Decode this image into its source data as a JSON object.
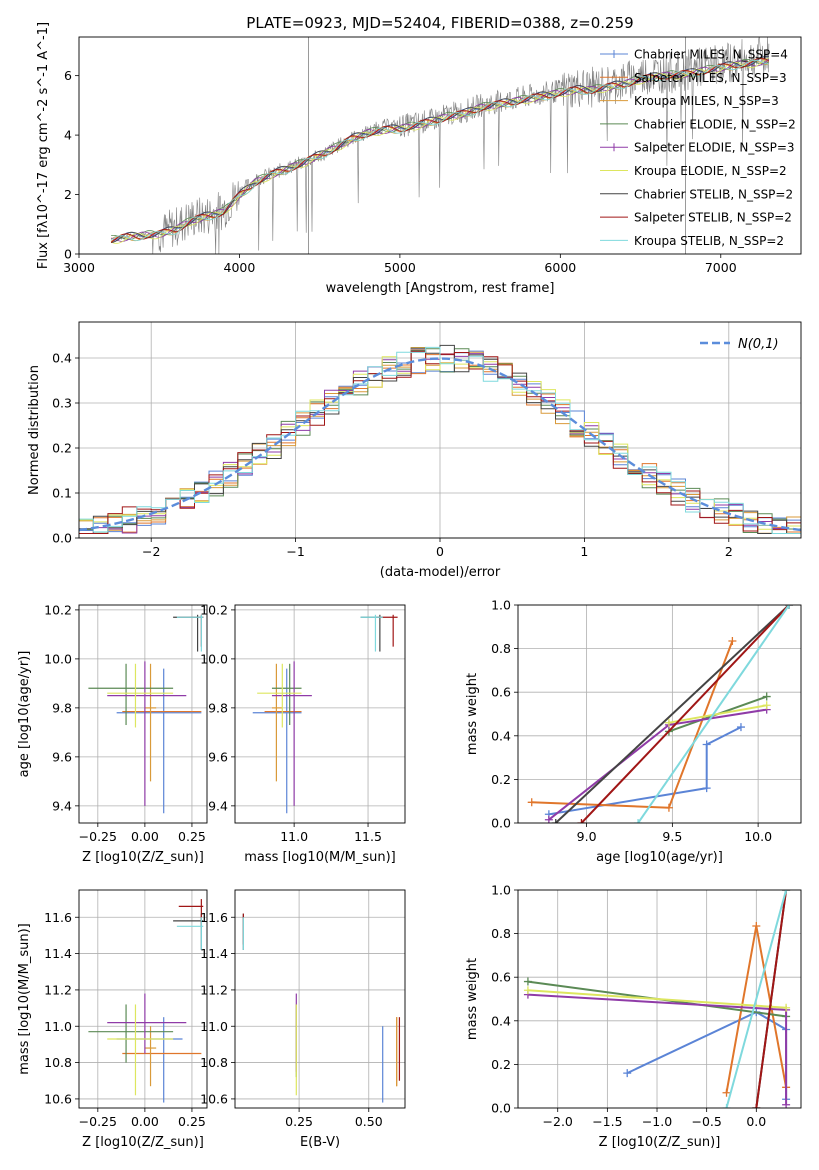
{
  "figure": {
    "title": "PLATE=0923, MJD=52404, FIBERID=0388, z=0.259"
  },
  "models": [
    {
      "name": "Chabrier MILES, N_SSP=4",
      "color": "#5b84d6"
    },
    {
      "name": "Salpeter MILES, N_SSP=3",
      "color": "#e0762b"
    },
    {
      "name": "Kroupa MILES, N_SSP=3",
      "color": "#d99a3a"
    },
    {
      "name": "Chabrier ELODIE, N_SSP=2",
      "color": "#5b8a55"
    },
    {
      "name": "Salpeter ELODIE, N_SSP=3",
      "color": "#8f3ba7"
    },
    {
      "name": "Kroupa ELODIE, N_SSP=2",
      "color": "#dde65f"
    },
    {
      "name": "Chabrier STELIB, N_SSP=2",
      "color": "#444444"
    },
    {
      "name": "Salpeter STELIB, N_SSP=2",
      "color": "#a01616"
    },
    {
      "name": "Kroupa STELIB, N_SSP=2",
      "color": "#7fd9dd"
    }
  ],
  "chart_data": [
    {
      "id": "spectrum",
      "type": "line",
      "xlabel": "wavelength [Angstrom, rest frame]",
      "ylabel": "Flux [fλ10^-17 erg cm^-2 s^-1 A^-1]",
      "xlim": [
        3000,
        7500
      ],
      "ylim": [
        0,
        7.3
      ],
      "xticks": [
        3000,
        4000,
        5000,
        6000,
        7000
      ],
      "yticks": [
        0,
        2,
        4,
        6
      ],
      "grid": false,
      "legend": "top-right",
      "data_color": "#808080",
      "data_x": [
        3200,
        3300,
        3400,
        3500,
        3600,
        3700,
        3800,
        3900,
        4000,
        4100,
        4200,
        4300,
        4400,
        4500,
        4600,
        4700,
        4800,
        4900,
        5000,
        5100,
        5200,
        5300,
        5400,
        5500,
        5600,
        5700,
        5800,
        5900,
        6000,
        6100,
        6200,
        6300,
        6400,
        6500,
        6600,
        6700,
        6800,
        6900,
        7000,
        7100,
        7200,
        7300
      ],
      "data_y": [
        0.45,
        0.6,
        0.65,
        0.7,
        0.9,
        1.2,
        1.3,
        1.5,
        2.1,
        2.5,
        2.7,
        2.9,
        3.1,
        3.3,
        3.6,
        3.9,
        4.1,
        4.3,
        4.3,
        4.4,
        4.5,
        4.7,
        4.8,
        5.0,
        5.1,
        5.2,
        5.3,
        5.4,
        5.5,
        5.6,
        5.6,
        5.7,
        5.8,
        6.0,
        6.1,
        6.1,
        6.2,
        6.3,
        6.4,
        6.5,
        6.6,
        6.7
      ],
      "model_y": [
        0.5,
        0.6,
        0.65,
        0.7,
        0.85,
        1.15,
        1.3,
        1.45,
        2.0,
        2.45,
        2.7,
        2.9,
        3.1,
        3.35,
        3.6,
        3.9,
        4.1,
        4.2,
        4.25,
        4.35,
        4.5,
        4.65,
        4.75,
        4.95,
        5.05,
        5.15,
        5.25,
        5.35,
        5.45,
        5.55,
        5.55,
        5.65,
        5.75,
        5.9,
        6.0,
        6.05,
        6.1,
        6.2,
        6.3,
        6.4,
        6.45,
        6.55
      ]
    },
    {
      "id": "residual_histogram",
      "type": "line",
      "xlabel": "(data-model)/error",
      "ylabel": "Normed distribution",
      "xlim": [
        -2.5,
        2.5
      ],
      "ylim": [
        0,
        0.48
      ],
      "xticks": [
        -2,
        -1,
        0,
        1,
        2
      ],
      "yticks": [
        0.0,
        0.1,
        0.2,
        0.3,
        0.4
      ],
      "grid": true,
      "legend": "top-right",
      "normal_label": "N(0,1)",
      "normal_color": "#5b8ddb",
      "bin_width": 0.1
    },
    {
      "id": "age_vs_Z",
      "type": "scatter",
      "xlabel": "Z [log10(Z/Z_sun)]",
      "ylabel": "age [log10(age/yr)]",
      "xlim": [
        -0.35,
        0.33
      ],
      "ylim": [
        9.33,
        10.22
      ],
      "xticks": [
        -0.25,
        0.0,
        0.25
      ],
      "yticks": [
        9.4,
        9.6,
        9.8,
        10.0,
        10.2
      ],
      "grid": true,
      "points": [
        {
          "m": 0,
          "x": 0.1,
          "y": 9.78,
          "xlo": -0.15,
          "xhi": 0.3,
          "ylo": 9.37,
          "yhi": 9.96
        },
        {
          "m": 1,
          "x": 0.1,
          "y": 9.785,
          "xlo": -0.12,
          "xhi": 0.3,
          "ylo": 9.8,
          "yhi": 9.8
        },
        {
          "m": 2,
          "x": 0.03,
          "y": 9.8,
          "xlo": 0.0,
          "xhi": 0.06,
          "ylo": 9.5,
          "yhi": 9.98
        },
        {
          "m": 3,
          "x": -0.1,
          "y": 9.88,
          "xlo": -0.3,
          "xhi": 0.15,
          "ylo": 9.73,
          "yhi": 9.98
        },
        {
          "m": 4,
          "x": 0.0,
          "y": 9.85,
          "xlo": -0.2,
          "xhi": 0.22,
          "ylo": 9.4,
          "yhi": 9.99
        },
        {
          "m": 5,
          "x": -0.05,
          "y": 9.86,
          "xlo": -0.2,
          "xhi": 0.15,
          "ylo": 9.72,
          "yhi": 9.98
        },
        {
          "m": 6,
          "x": 0.28,
          "y": 10.17,
          "xlo": 0.15,
          "xhi": 0.31,
          "ylo": 10.03,
          "yhi": 10.18
        },
        {
          "m": 7,
          "x": 0.3,
          "y": 10.17,
          "xlo": 0.18,
          "xhi": 0.31,
          "ylo": 10.05,
          "yhi": 10.18
        },
        {
          "m": 8,
          "x": 0.3,
          "y": 10.17,
          "xlo": 0.17,
          "xhi": 0.31,
          "ylo": 10.03,
          "yhi": 10.18
        }
      ]
    },
    {
      "id": "age_vs_mass",
      "type": "scatter",
      "xlabel": "mass [log10(M/M_sun)]",
      "ylabel": "",
      "xlim": [
        10.6,
        11.75
      ],
      "ylim": [
        9.33,
        10.22
      ],
      "xticks": [
        11.0,
        11.5
      ],
      "yticks": [
        9.4,
        9.6,
        9.8,
        10.0,
        10.2
      ],
      "grid": true,
      "points": [
        {
          "m": 0,
          "x": 10.95,
          "y": 9.78,
          "xlo": 10.72,
          "xhi": 11.05,
          "ylo": 9.37,
          "yhi": 9.96
        },
        {
          "m": 1,
          "x": 10.93,
          "y": 9.785,
          "xlo": 10.8,
          "xhi": 11.05,
          "ylo": 9.8,
          "yhi": 9.8
        },
        {
          "m": 2,
          "x": 10.88,
          "y": 9.8,
          "xlo": 10.85,
          "xhi": 10.92,
          "ylo": 9.5,
          "yhi": 9.98
        },
        {
          "m": 3,
          "x": 10.97,
          "y": 9.88,
          "xlo": 10.85,
          "xhi": 11.05,
          "ylo": 9.73,
          "yhi": 9.98
        },
        {
          "m": 4,
          "x": 11.0,
          "y": 9.85,
          "xlo": 10.85,
          "xhi": 11.12,
          "ylo": 9.4,
          "yhi": 9.99
        },
        {
          "m": 5,
          "x": 10.92,
          "y": 9.86,
          "xlo": 10.75,
          "xhi": 11.05,
          "ylo": 9.72,
          "yhi": 9.98
        },
        {
          "m": 6,
          "x": 11.58,
          "y": 10.17,
          "xlo": 11.45,
          "xhi": 11.6,
          "ylo": 10.03,
          "yhi": 10.18
        },
        {
          "m": 7,
          "x": 11.67,
          "y": 10.17,
          "xlo": 11.55,
          "xhi": 11.7,
          "ylo": 10.05,
          "yhi": 10.18
        },
        {
          "m": 8,
          "x": 11.55,
          "y": 10.17,
          "xlo": 11.45,
          "xhi": 11.6,
          "ylo": 10.03,
          "yhi": 10.18
        }
      ]
    },
    {
      "id": "weight_vs_age",
      "type": "line",
      "xlabel": "age [log10(age/yr)]",
      "ylabel": "mass weight",
      "xlim": [
        8.6,
        10.25
      ],
      "ylim": [
        0,
        1
      ],
      "xticks": [
        9.0,
        9.5,
        10.0
      ],
      "yticks": [
        0.0,
        0.2,
        0.4,
        0.6,
        0.8,
        1.0
      ],
      "grid": true,
      "series": [
        {
          "m": 0,
          "x": [
            8.78,
            9.7,
            9.7,
            9.9
          ],
          "y": [
            0.04,
            0.16,
            0.36,
            0.44
          ]
        },
        {
          "m": 1,
          "x": [
            8.68,
            9.48,
            9.85
          ],
          "y": [
            0.095,
            0.07,
            0.835
          ]
        },
        {
          "m": 3,
          "x": [
            9.48,
            10.05
          ],
          "y": [
            0.42,
            0.58
          ]
        },
        {
          "m": 4,
          "x": [
            8.78,
            9.48,
            10.05
          ],
          "y": [
            0.015,
            0.45,
            0.52
          ]
        },
        {
          "m": 5,
          "x": [
            9.48,
            10.05
          ],
          "y": [
            0.46,
            0.54
          ]
        },
        {
          "m": 6,
          "x": [
            8.82,
            10.18
          ],
          "y": [
            0.0,
            1.0
          ]
        },
        {
          "m": 7,
          "x": [
            8.97,
            10.18
          ],
          "y": [
            0.0,
            1.0
          ]
        },
        {
          "m": 8,
          "x": [
            9.3,
            10.18
          ],
          "y": [
            0.0,
            1.0
          ]
        }
      ]
    },
    {
      "id": "mass_vs_Z",
      "type": "scatter",
      "xlabel": "Z [log10(Z/Z_sun)]",
      "ylabel": "mass [log10(M/M_sun)]",
      "xlim": [
        -0.35,
        0.33
      ],
      "ylim": [
        10.55,
        11.75
      ],
      "xticks": [
        -0.25,
        0.0,
        0.25
      ],
      "yticks": [
        10.6,
        10.8,
        11.0,
        11.2,
        11.4,
        11.6
      ],
      "grid": true,
      "points": [
        {
          "m": 0,
          "x": 0.1,
          "y": 10.93,
          "xlo": -0.15,
          "xhi": 0.2,
          "ylo": 10.58,
          "yhi": 11.05
        },
        {
          "m": 1,
          "x": 0.1,
          "y": 10.85,
          "xlo": -0.12,
          "xhi": 0.3,
          "ylo": 10.85,
          "yhi": 10.85
        },
        {
          "m": 2,
          "x": 0.03,
          "y": 10.88,
          "xlo": 0.0,
          "xhi": 0.06,
          "ylo": 10.67,
          "yhi": 11.0
        },
        {
          "m": 3,
          "x": -0.1,
          "y": 10.97,
          "xlo": -0.3,
          "xhi": 0.15,
          "ylo": 10.8,
          "yhi": 11.12
        },
        {
          "m": 4,
          "x": 0.0,
          "y": 11.02,
          "xlo": -0.2,
          "xhi": 0.22,
          "ylo": 10.85,
          "yhi": 11.18
        },
        {
          "m": 5,
          "x": -0.05,
          "y": 10.93,
          "xlo": -0.2,
          "xhi": 0.15,
          "ylo": 10.62,
          "yhi": 11.12
        },
        {
          "m": 6,
          "x": 0.3,
          "y": 11.58,
          "xlo": 0.15,
          "xhi": 0.31,
          "ylo": 11.42,
          "yhi": 11.62
        },
        {
          "m": 7,
          "x": 0.3,
          "y": 11.66,
          "xlo": 0.18,
          "xhi": 0.31,
          "ylo": 11.55,
          "yhi": 11.7
        },
        {
          "m": 8,
          "x": 0.3,
          "y": 11.55,
          "xlo": 0.17,
          "xhi": 0.31,
          "ylo": 11.42,
          "yhi": 11.6
        }
      ]
    },
    {
      "id": "mass_vs_ebv",
      "type": "scatter",
      "xlabel": "E(B-V)",
      "ylabel": "",
      "xlim": [
        0.02,
        0.63
      ],
      "ylim": [
        10.55,
        11.75
      ],
      "xticks": [
        0.25,
        0.5
      ],
      "yticks": [
        10.6,
        10.8,
        11.0,
        11.2,
        11.4,
        11.6
      ],
      "grid": true,
      "points": [
        {
          "m": 0,
          "x": 0.55,
          "y": 10.93,
          "xlo": 0.55,
          "xhi": 0.55,
          "ylo": 10.58,
          "yhi": 11.0
        },
        {
          "m": 1,
          "x": 0.6,
          "y": 10.85,
          "xlo": 0.6,
          "xhi": 0.6,
          "ylo": 10.67,
          "yhi": 11.05
        },
        {
          "m": 2,
          "x": 0.6,
          "y": 10.88,
          "xlo": 0.6,
          "xhi": 0.6,
          "ylo": 10.67,
          "yhi": 11.05
        },
        {
          "m": 3,
          "x": 0.24,
          "y": 10.97,
          "xlo": 0.24,
          "xhi": 0.24,
          "ylo": 10.72,
          "yhi": 11.12
        },
        {
          "m": 4,
          "x": 0.24,
          "y": 11.0,
          "xlo": 0.24,
          "xhi": 0.24,
          "ylo": 10.75,
          "yhi": 11.18
        },
        {
          "m": 5,
          "x": 0.24,
          "y": 10.93,
          "xlo": 0.24,
          "xhi": 0.24,
          "ylo": 10.62,
          "yhi": 11.12
        },
        {
          "m": 6,
          "x": 0.05,
          "y": 11.58,
          "xlo": 0.05,
          "xhi": 0.05,
          "ylo": 11.42,
          "yhi": 11.62
        },
        {
          "m": 7,
          "x": 0.05,
          "y": 11.6,
          "xlo": 0.05,
          "xhi": 0.05,
          "ylo": 11.45,
          "yhi": 11.62
        },
        {
          "m": 8,
          "x": 0.05,
          "y": 11.55,
          "xlo": 0.05,
          "xhi": 0.05,
          "ylo": 11.42,
          "yhi": 11.6
        },
        {
          "m": 7,
          "x": 0.61,
          "y": 10.95,
          "xlo": 0.61,
          "xhi": 0.61,
          "ylo": 10.7,
          "yhi": 11.05
        }
      ]
    },
    {
      "id": "weight_vs_Z",
      "type": "line",
      "xlabel": "Z [log10(Z/Z_sun)]",
      "ylabel": "mass weight",
      "xlim": [
        -2.4,
        0.45
      ],
      "ylim": [
        0,
        1
      ],
      "xticks": [
        -2.0,
        -1.5,
        -1.0,
        -0.5,
        0.0
      ],
      "yticks": [
        0.0,
        0.2,
        0.4,
        0.6,
        0.8,
        1.0
      ],
      "grid": true,
      "series": [
        {
          "m": 0,
          "x": [
            -1.3,
            0.0,
            0.3,
            0.3
          ],
          "y": [
            0.16,
            0.44,
            0.36,
            0.04
          ]
        },
        {
          "m": 1,
          "x": [
            -0.3,
            0.0,
            0.3
          ],
          "y": [
            0.07,
            0.835,
            0.095
          ]
        },
        {
          "m": 3,
          "x": [
            -2.3,
            0.3
          ],
          "y": [
            0.58,
            0.42
          ]
        },
        {
          "m": 4,
          "x": [
            -2.3,
            0.3,
            0.3
          ],
          "y": [
            0.52,
            0.45,
            0.015
          ]
        },
        {
          "m": 5,
          "x": [
            -2.3,
            0.3
          ],
          "y": [
            0.54,
            0.46
          ]
        },
        {
          "m": 6,
          "x": [
            0.0,
            0.3
          ],
          "y": [
            0.0,
            1.0
          ]
        },
        {
          "m": 7,
          "x": [
            0.0,
            0.3
          ],
          "y": [
            0.0,
            1.0
          ]
        },
        {
          "m": 8,
          "x": [
            -0.3,
            0.3
          ],
          "y": [
            0.0,
            1.0
          ]
        }
      ]
    }
  ]
}
